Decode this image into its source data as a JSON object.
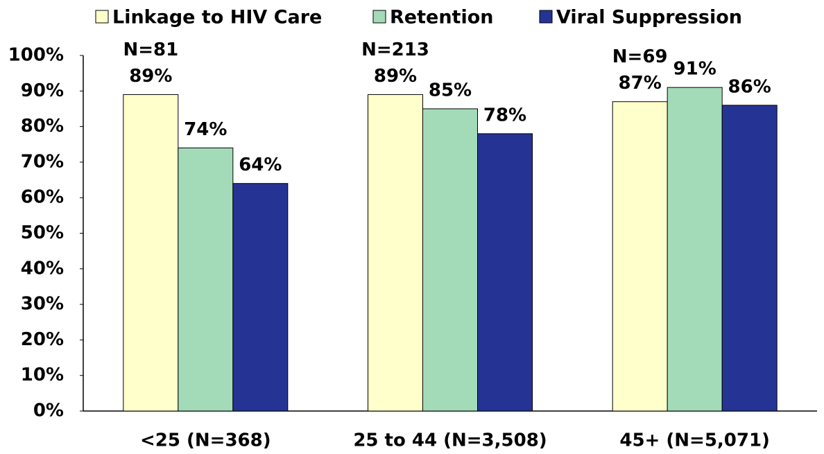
{
  "chart_data": {
    "type": "bar",
    "categories": [
      "<25 (N=368)",
      "25 to 44 (N=3,508)",
      "45+ (N=5,071)"
    ],
    "series": [
      {
        "name": "Linkage to HIV Care",
        "color": "#ffffcc",
        "values": [
          89,
          89,
          87
        ],
        "value_labels": [
          "89%",
          "89%",
          "87%"
        ]
      },
      {
        "name": "Retention",
        "color": "#a3dbb8",
        "values": [
          74,
          85,
          91
        ],
        "value_labels": [
          "74%",
          "85%",
          "91%"
        ]
      },
      {
        "name": "Viral Suppression",
        "color": "#253494",
        "values": [
          64,
          78,
          86
        ],
        "value_labels": [
          "64%",
          "78%",
          "86%"
        ]
      }
    ],
    "annotations": [
      "N=81",
      "N=213",
      "N=69"
    ],
    "ylim": [
      0,
      100
    ],
    "yticks": [
      {
        "value": 0,
        "label": "0%"
      },
      {
        "value": 10,
        "label": "10%"
      },
      {
        "value": 20,
        "label": "20%"
      },
      {
        "value": 30,
        "label": "30%"
      },
      {
        "value": 40,
        "label": "40%"
      },
      {
        "value": 50,
        "label": "50%"
      },
      {
        "value": 60,
        "label": "60%"
      },
      {
        "value": 70,
        "label": "70%"
      },
      {
        "value": 80,
        "label": "80%"
      },
      {
        "value": 90,
        "label": "90%"
      },
      {
        "value": 100,
        "label": "100%"
      }
    ],
    "grid": false,
    "legend": "top"
  }
}
